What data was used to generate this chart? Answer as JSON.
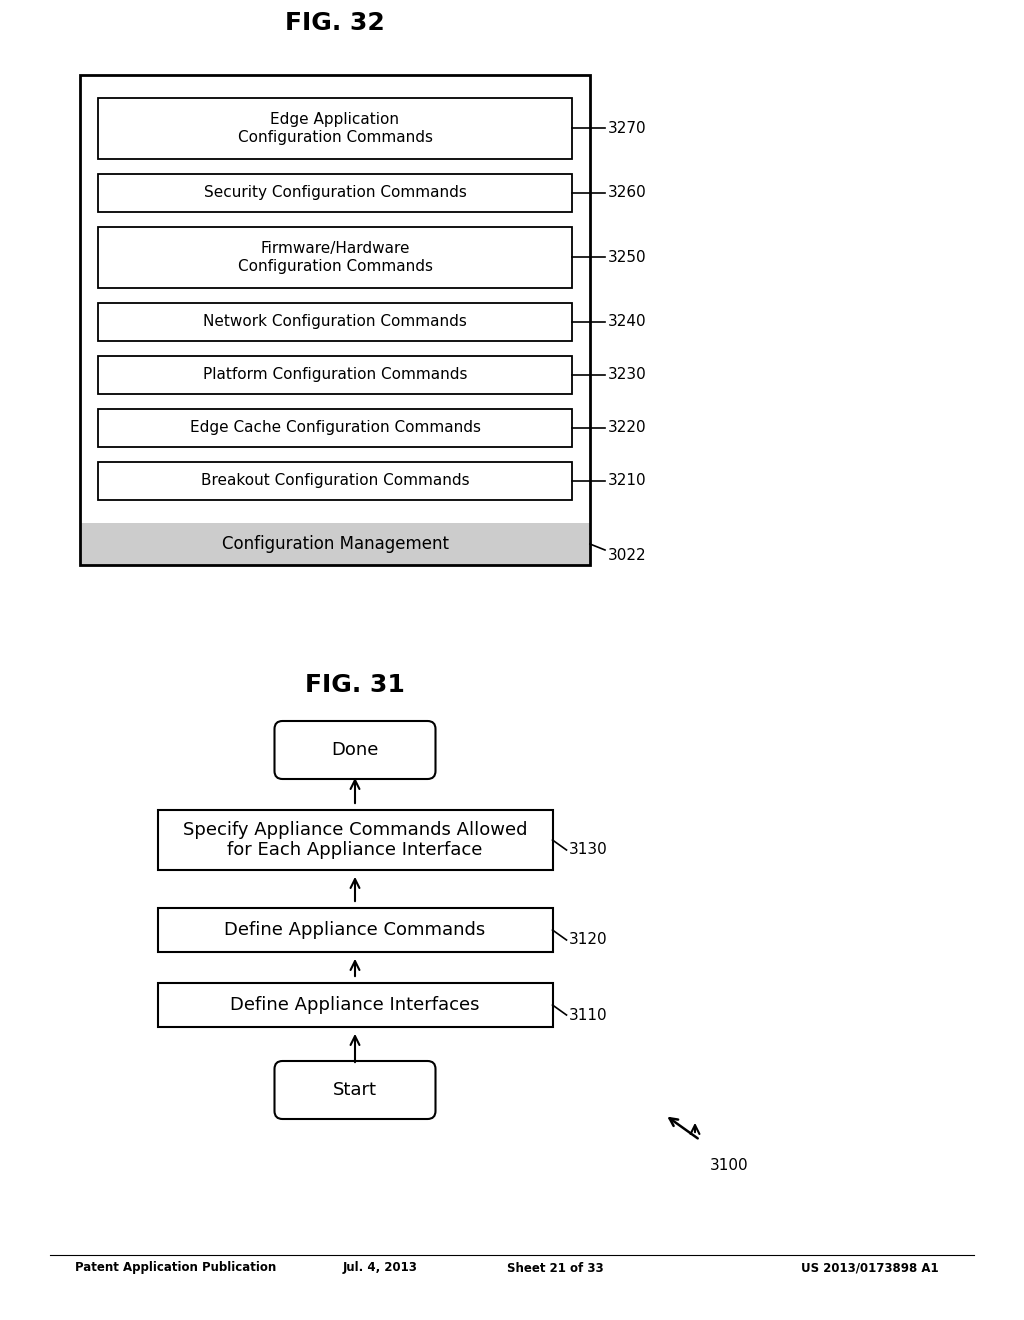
{
  "bg_color": "#ffffff",
  "header_text": "Patent Application Publication",
  "header_date": "Jul. 4, 2013",
  "header_sheet": "Sheet 21 of 33",
  "header_patent": "US 2013/0173898 A1",
  "fig31_label": "3100",
  "fig31_title": "FIG. 31",
  "fig32_label": "3022",
  "fig32_title": "FIG. 32",
  "config_mgmt_label": "Configuration Management",
  "inner_boxes": [
    {
      "text": "Breakout Configuration Commands",
      "label": "3210"
    },
    {
      "text": "Edge Cache Configuration Commands",
      "label": "3220"
    },
    {
      "text": "Platform Configuration Commands",
      "label": "3230"
    },
    {
      "text": "Network Configuration Commands",
      "label": "3240"
    },
    {
      "text": "Firmware/Hardware\nConfiguration Commands",
      "label": "3250"
    },
    {
      "text": "Security Configuration Commands",
      "label": "3260"
    },
    {
      "text": "Edge Application\nConfiguration Commands",
      "label": "3270"
    }
  ]
}
